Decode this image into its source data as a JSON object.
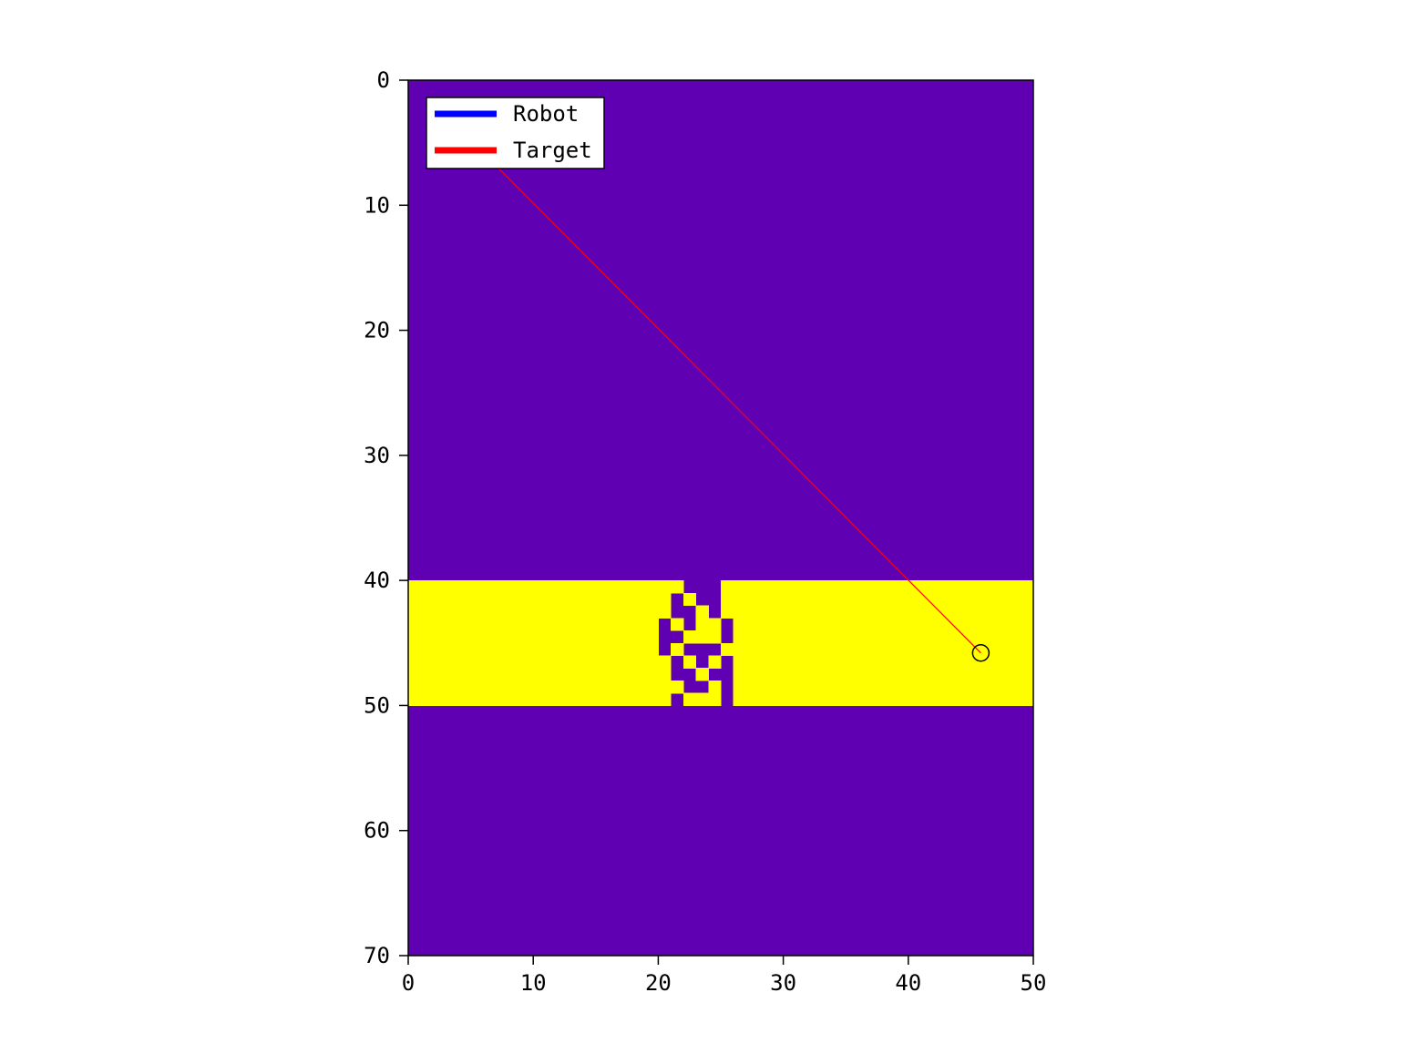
{
  "chart_data": {
    "type": "heatmap",
    "title": "",
    "xlabel": "",
    "ylabel": "",
    "xlim": [
      0,
      50
    ],
    "ylim": [
      70,
      0
    ],
    "y_axis_inverted": true,
    "grid": false,
    "x_ticks": [
      "0",
      "10",
      "20",
      "30",
      "40",
      "50"
    ],
    "y_ticks": [
      "0",
      "10",
      "20",
      "30",
      "40",
      "50",
      "60",
      "70"
    ],
    "colors": {
      "free": "#5f00b2",
      "obstacle": "#ffff00",
      "robot": "#0000ff",
      "target": "#ff0000",
      "start_marker": "#000000"
    },
    "grid_shape": [
      70,
      50
    ],
    "obstacle_band_rows": [
      40,
      50
    ],
    "cells_open_in_band": [
      [
        40,
        22
      ],
      [
        40,
        23
      ],
      [
        40,
        24
      ],
      [
        41,
        21
      ],
      [
        41,
        23
      ],
      [
        41,
        24
      ],
      [
        42,
        21
      ],
      [
        42,
        22
      ],
      [
        42,
        24
      ],
      [
        43,
        20
      ],
      [
        43,
        22
      ],
      [
        43,
        25
      ],
      [
        44,
        20
      ],
      [
        44,
        21
      ],
      [
        44,
        25
      ],
      [
        45,
        20
      ],
      [
        45,
        22
      ],
      [
        45,
        23
      ],
      [
        45,
        24
      ],
      [
        46,
        21
      ],
      [
        46,
        23
      ],
      [
        46,
        25
      ],
      [
        47,
        21
      ],
      [
        47,
        22
      ],
      [
        47,
        24
      ],
      [
        47,
        25
      ],
      [
        48,
        22
      ],
      [
        48,
        23
      ],
      [
        48,
        25
      ],
      [
        49,
        21
      ],
      [
        49,
        25
      ]
    ],
    "series": [
      {
        "name": "Robot",
        "color": "#0000ff",
        "points": []
      },
      {
        "name": "Target",
        "color": "#ff0000",
        "points": [
          [
            45.8,
            45.8
          ],
          [
            3.0,
            2.8
          ]
        ]
      }
    ],
    "marker": {
      "shape": "circle",
      "at": [
        45.8,
        45.8
      ]
    },
    "legend": {
      "position": "top-left",
      "entries": [
        {
          "label": "Robot",
          "color": "#0000ff"
        },
        {
          "label": "Target",
          "color": "#ff0000"
        }
      ]
    }
  }
}
